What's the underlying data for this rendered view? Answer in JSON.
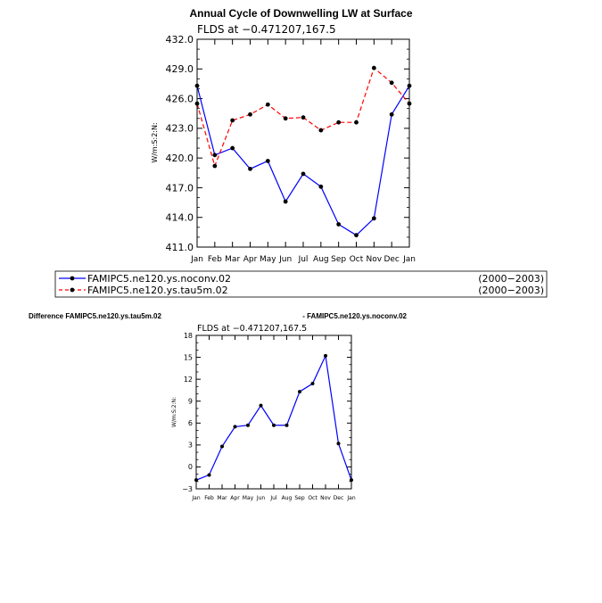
{
  "colors": {
    "series1": "#0000ff",
    "series2": "#ff0000",
    "axis": "#000000",
    "marker": "#000000"
  },
  "chart_data": [
    {
      "type": "line",
      "title": "Annual Cycle of Downwelling LW at Surface",
      "subtitle": "FLDS at −0.471207,167.5",
      "ylabel": "W/m:S:2:N:",
      "xlabel": "",
      "categories": [
        "Jan",
        "Feb",
        "Mar",
        "Apr",
        "May",
        "Jun",
        "Jul",
        "Aug",
        "Sep",
        "Oct",
        "Nov",
        "Dec",
        "Jan"
      ],
      "yticks": [
        411.0,
        414.0,
        417.0,
        420.0,
        423.0,
        426.0,
        429.0,
        432.0
      ],
      "yticklabels": [
        "411.0",
        "414.0",
        "417.0",
        "420.0",
        "423.0",
        "426.0",
        "429.0",
        "432.0"
      ],
      "ylim": [
        411,
        432
      ],
      "series": [
        {
          "name": "FAMIPC5.ne120.ys.noconv.02",
          "period": "(2000−2003)",
          "style": "solid",
          "color": "#0000ff",
          "values": [
            427.3,
            420.3,
            421.0,
            418.9,
            419.7,
            415.6,
            418.4,
            417.1,
            413.3,
            412.2,
            413.9,
            424.4,
            427.3
          ]
        },
        {
          "name": "FAMIPC5.ne120.ys.tau5m.02",
          "period": "(2000−2003)",
          "style": "dashed",
          "color": "#ff0000",
          "values": [
            425.5,
            419.2,
            423.8,
            424.4,
            425.4,
            424.0,
            424.1,
            422.8,
            423.6,
            423.6,
            429.1,
            427.6,
            425.5
          ]
        }
      ]
    },
    {
      "type": "line",
      "title_left": "Difference FAMIPC5.ne120.ys.tau5m.02",
      "title_right": "- FAMIPC5.ne120.ys.noconv.02",
      "subtitle": "FLDS at −0.471207,167.5",
      "ylabel": "W/m:S:2:N:",
      "categories": [
        "Jan",
        "Feb",
        "Mar",
        "Apr",
        "May",
        "Jun",
        "Jul",
        "Aug",
        "Sep",
        "Oct",
        "Nov",
        "Dec",
        "Jan"
      ],
      "yticks": [
        -3,
        0,
        3,
        6,
        9,
        12,
        15,
        18
      ],
      "yticklabels": [
        "−3",
        "0",
        "3",
        "6",
        "9",
        "12",
        "15",
        "18"
      ],
      "ylim": [
        -3,
        18
      ],
      "series": [
        {
          "name": "difference",
          "color": "#0000ff",
          "values": [
            -1.8,
            -1.1,
            2.8,
            5.5,
            5.7,
            8.4,
            5.7,
            5.7,
            10.3,
            11.4,
            15.2,
            3.2,
            -1.8
          ]
        }
      ]
    }
  ]
}
